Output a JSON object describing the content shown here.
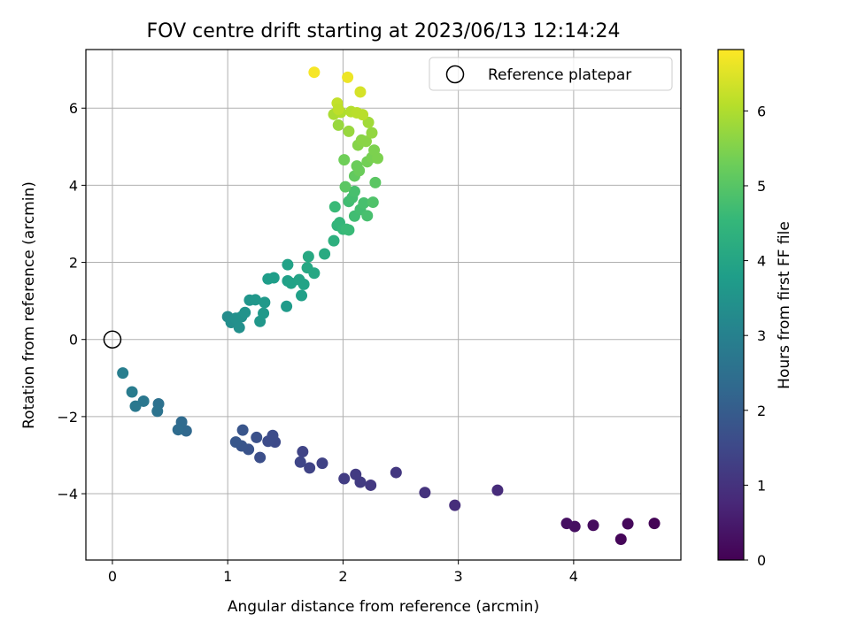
{
  "chart_data": {
    "type": "scatter",
    "title": "FOV centre drift starting at 2023/06/13 12:14:24",
    "xlabel": "Angular distance from reference (arcmin)",
    "ylabel": "Rotation from reference (arcmin)",
    "xlim": [
      -0.23,
      4.93
    ],
    "ylim": [
      -5.72,
      7.52
    ],
    "xticks": [
      0,
      1,
      2,
      3,
      4
    ],
    "yticks": [
      -4,
      -2,
      0,
      2,
      4,
      6
    ],
    "grid": true,
    "legend": {
      "label": "Reference platepar",
      "placement": "top-right"
    },
    "reference_point": {
      "x": 0,
      "y": 0
    },
    "colorbar": {
      "label": "Hours from first FF file",
      "colormap": "viridis",
      "range": [
        0,
        6.82
      ],
      "ticks": [
        0,
        1,
        2,
        3,
        4,
        5,
        6
      ]
    },
    "points": [
      {
        "x": 4.7,
        "y": -4.77,
        "c": 0.05
      },
      {
        "x": 4.41,
        "y": -5.18,
        "c": 0.1
      },
      {
        "x": 4.47,
        "y": -4.78,
        "c": 0.15
      },
      {
        "x": 4.17,
        "y": -4.82,
        "c": 0.2
      },
      {
        "x": 4.01,
        "y": -4.85,
        "c": 0.25
      },
      {
        "x": 3.94,
        "y": -4.77,
        "c": 0.3
      },
      {
        "x": 3.34,
        "y": -3.91,
        "c": 0.85
      },
      {
        "x": 2.97,
        "y": -4.3,
        "c": 0.9
      },
      {
        "x": 2.71,
        "y": -3.97,
        "c": 1.0
      },
      {
        "x": 2.46,
        "y": -3.45,
        "c": 1.1
      },
      {
        "x": 2.24,
        "y": -3.78,
        "c": 1.15
      },
      {
        "x": 2.15,
        "y": -3.7,
        "c": 1.2
      },
      {
        "x": 2.11,
        "y": -3.5,
        "c": 1.2
      },
      {
        "x": 2.01,
        "y": -3.61,
        "c": 1.25
      },
      {
        "x": 1.82,
        "y": -3.21,
        "c": 1.35
      },
      {
        "x": 1.71,
        "y": -3.33,
        "c": 1.4
      },
      {
        "x": 1.65,
        "y": -2.91,
        "c": 1.4
      },
      {
        "x": 1.63,
        "y": -3.18,
        "c": 1.45
      },
      {
        "x": 1.41,
        "y": -2.66,
        "c": 1.55
      },
      {
        "x": 1.39,
        "y": -2.49,
        "c": 1.6
      },
      {
        "x": 1.35,
        "y": -2.64,
        "c": 1.6
      },
      {
        "x": 1.28,
        "y": -3.06,
        "c": 1.65
      },
      {
        "x": 1.25,
        "y": -2.54,
        "c": 1.7
      },
      {
        "x": 1.18,
        "y": -2.85,
        "c": 1.75
      },
      {
        "x": 1.12,
        "y": -2.76,
        "c": 1.8
      },
      {
        "x": 1.13,
        "y": -2.35,
        "c": 1.8
      },
      {
        "x": 1.07,
        "y": -2.66,
        "c": 1.85
      },
      {
        "x": 0.64,
        "y": -2.37,
        "c": 2.3
      },
      {
        "x": 0.6,
        "y": -2.14,
        "c": 2.35
      },
      {
        "x": 0.57,
        "y": -2.34,
        "c": 2.4
      },
      {
        "x": 0.4,
        "y": -1.67,
        "c": 2.55
      },
      {
        "x": 0.39,
        "y": -1.86,
        "c": 2.6
      },
      {
        "x": 0.27,
        "y": -1.6,
        "c": 2.7
      },
      {
        "x": 0.2,
        "y": -1.73,
        "c": 2.75
      },
      {
        "x": 0.17,
        "y": -1.36,
        "c": 2.85
      },
      {
        "x": 0.09,
        "y": -0.87,
        "c": 2.9
      },
      {
        "x": 1.0,
        "y": 0.59,
        "c": 3.3
      },
      {
        "x": 1.03,
        "y": 0.44,
        "c": 3.35
      },
      {
        "x": 1.07,
        "y": 0.55,
        "c": 3.4
      },
      {
        "x": 1.1,
        "y": 0.31,
        "c": 3.4
      },
      {
        "x": 1.12,
        "y": 0.59,
        "c": 3.45
      },
      {
        "x": 1.15,
        "y": 0.7,
        "c": 3.5
      },
      {
        "x": 1.19,
        "y": 1.02,
        "c": 3.55
      },
      {
        "x": 1.24,
        "y": 1.03,
        "c": 3.6
      },
      {
        "x": 1.28,
        "y": 0.47,
        "c": 3.6
      },
      {
        "x": 1.31,
        "y": 0.68,
        "c": 3.65
      },
      {
        "x": 1.32,
        "y": 0.96,
        "c": 3.65
      },
      {
        "x": 1.35,
        "y": 1.57,
        "c": 3.75
      },
      {
        "x": 1.4,
        "y": 1.6,
        "c": 3.8
      },
      {
        "x": 1.51,
        "y": 0.86,
        "c": 3.7
      },
      {
        "x": 1.52,
        "y": 1.52,
        "c": 3.85
      },
      {
        "x": 1.52,
        "y": 1.94,
        "c": 3.9
      },
      {
        "x": 1.55,
        "y": 1.46,
        "c": 3.9
      },
      {
        "x": 1.62,
        "y": 1.55,
        "c": 3.95
      },
      {
        "x": 1.64,
        "y": 1.14,
        "c": 3.85
      },
      {
        "x": 1.66,
        "y": 1.43,
        "c": 3.95
      },
      {
        "x": 1.69,
        "y": 1.86,
        "c": 4.05
      },
      {
        "x": 1.7,
        "y": 2.15,
        "c": 4.1
      },
      {
        "x": 1.75,
        "y": 1.72,
        "c": 4.05
      },
      {
        "x": 1.84,
        "y": 2.22,
        "c": 4.15
      },
      {
        "x": 1.92,
        "y": 2.56,
        "c": 4.3
      },
      {
        "x": 1.93,
        "y": 3.44,
        "c": 4.6
      },
      {
        "x": 1.95,
        "y": 2.96,
        "c": 4.45
      },
      {
        "x": 1.97,
        "y": 3.03,
        "c": 4.5
      },
      {
        "x": 2.0,
        "y": 2.86,
        "c": 4.55
      },
      {
        "x": 2.03,
        "y": 2.86,
        "c": 4.6
      },
      {
        "x": 2.05,
        "y": 2.84,
        "c": 4.6
      },
      {
        "x": 2.05,
        "y": 3.58,
        "c": 4.7
      },
      {
        "x": 2.08,
        "y": 3.68,
        "c": 4.75
      },
      {
        "x": 2.1,
        "y": 3.84,
        "c": 4.8
      },
      {
        "x": 2.1,
        "y": 3.2,
        "c": 4.7
      },
      {
        "x": 2.15,
        "y": 3.37,
        "c": 4.75
      },
      {
        "x": 2.18,
        "y": 3.54,
        "c": 4.8
      },
      {
        "x": 2.21,
        "y": 3.21,
        "c": 4.8
      },
      {
        "x": 2.26,
        "y": 3.56,
        "c": 4.9
      },
      {
        "x": 2.28,
        "y": 4.07,
        "c": 5.05
      },
      {
        "x": 2.02,
        "y": 3.96,
        "c": 5.05
      },
      {
        "x": 2.01,
        "y": 4.66,
        "c": 5.3
      },
      {
        "x": 2.1,
        "y": 4.24,
        "c": 5.15
      },
      {
        "x": 2.12,
        "y": 4.5,
        "c": 5.25
      },
      {
        "x": 2.14,
        "y": 4.38,
        "c": 5.25
      },
      {
        "x": 2.21,
        "y": 4.61,
        "c": 5.35
      },
      {
        "x": 2.25,
        "y": 4.72,
        "c": 5.4
      },
      {
        "x": 2.27,
        "y": 4.91,
        "c": 5.45
      },
      {
        "x": 2.3,
        "y": 4.7,
        "c": 5.45
      },
      {
        "x": 2.13,
        "y": 5.04,
        "c": 5.55
      },
      {
        "x": 2.16,
        "y": 5.17,
        "c": 5.6
      },
      {
        "x": 2.2,
        "y": 5.14,
        "c": 5.6
      },
      {
        "x": 2.25,
        "y": 5.36,
        "c": 5.7
      },
      {
        "x": 1.96,
        "y": 5.56,
        "c": 5.75
      },
      {
        "x": 2.05,
        "y": 5.4,
        "c": 5.75
      },
      {
        "x": 2.22,
        "y": 5.63,
        "c": 5.85
      },
      {
        "x": 1.92,
        "y": 5.84,
        "c": 5.95
      },
      {
        "x": 1.98,
        "y": 5.89,
        "c": 6.0
      },
      {
        "x": 2.07,
        "y": 5.91,
        "c": 6.05
      },
      {
        "x": 2.12,
        "y": 5.88,
        "c": 6.1
      },
      {
        "x": 2.17,
        "y": 5.83,
        "c": 6.1
      },
      {
        "x": 1.95,
        "y": 6.13,
        "c": 6.2
      },
      {
        "x": 1.96,
        "y": 5.97,
        "c": 6.15
      },
      {
        "x": 2.15,
        "y": 6.42,
        "c": 6.4
      },
      {
        "x": 2.04,
        "y": 6.8,
        "c": 6.65
      },
      {
        "x": 1.75,
        "y": 6.93,
        "c": 6.75
      }
    ]
  },
  "colors": {
    "axis": "#000000",
    "grid": "#b0b0b0",
    "legend_border": "#cccccc",
    "viridis": [
      "#440154",
      "#482878",
      "#3e4989",
      "#31688e",
      "#26828e",
      "#1f9e89",
      "#35b779",
      "#6ece58",
      "#b5de2b",
      "#fde725"
    ]
  }
}
